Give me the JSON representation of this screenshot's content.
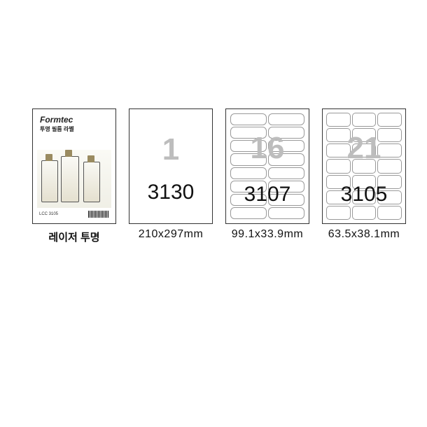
{
  "package": {
    "brand": "Formtec",
    "subtitle": "투명 필름 라벨",
    "footer_code": "LCC 3105",
    "caption": "레이저 투명"
  },
  "layouts": [
    {
      "count_label": "1",
      "code": "3130",
      "size_label": "210x297mm",
      "cols": 1,
      "rows": 1
    },
    {
      "count_label": "16",
      "code": "3107",
      "size_label": "99.1x33.9mm",
      "cols": 2,
      "rows": 8
    },
    {
      "count_label": "21",
      "code": "3105",
      "size_label": "63.5x38.1mm",
      "cols": 3,
      "rows": 7
    }
  ],
  "style": {
    "big_num_color": "#bdbdbd",
    "border_color": "#333333",
    "cell_border_color": "#999999",
    "background_color": "#ffffff"
  }
}
